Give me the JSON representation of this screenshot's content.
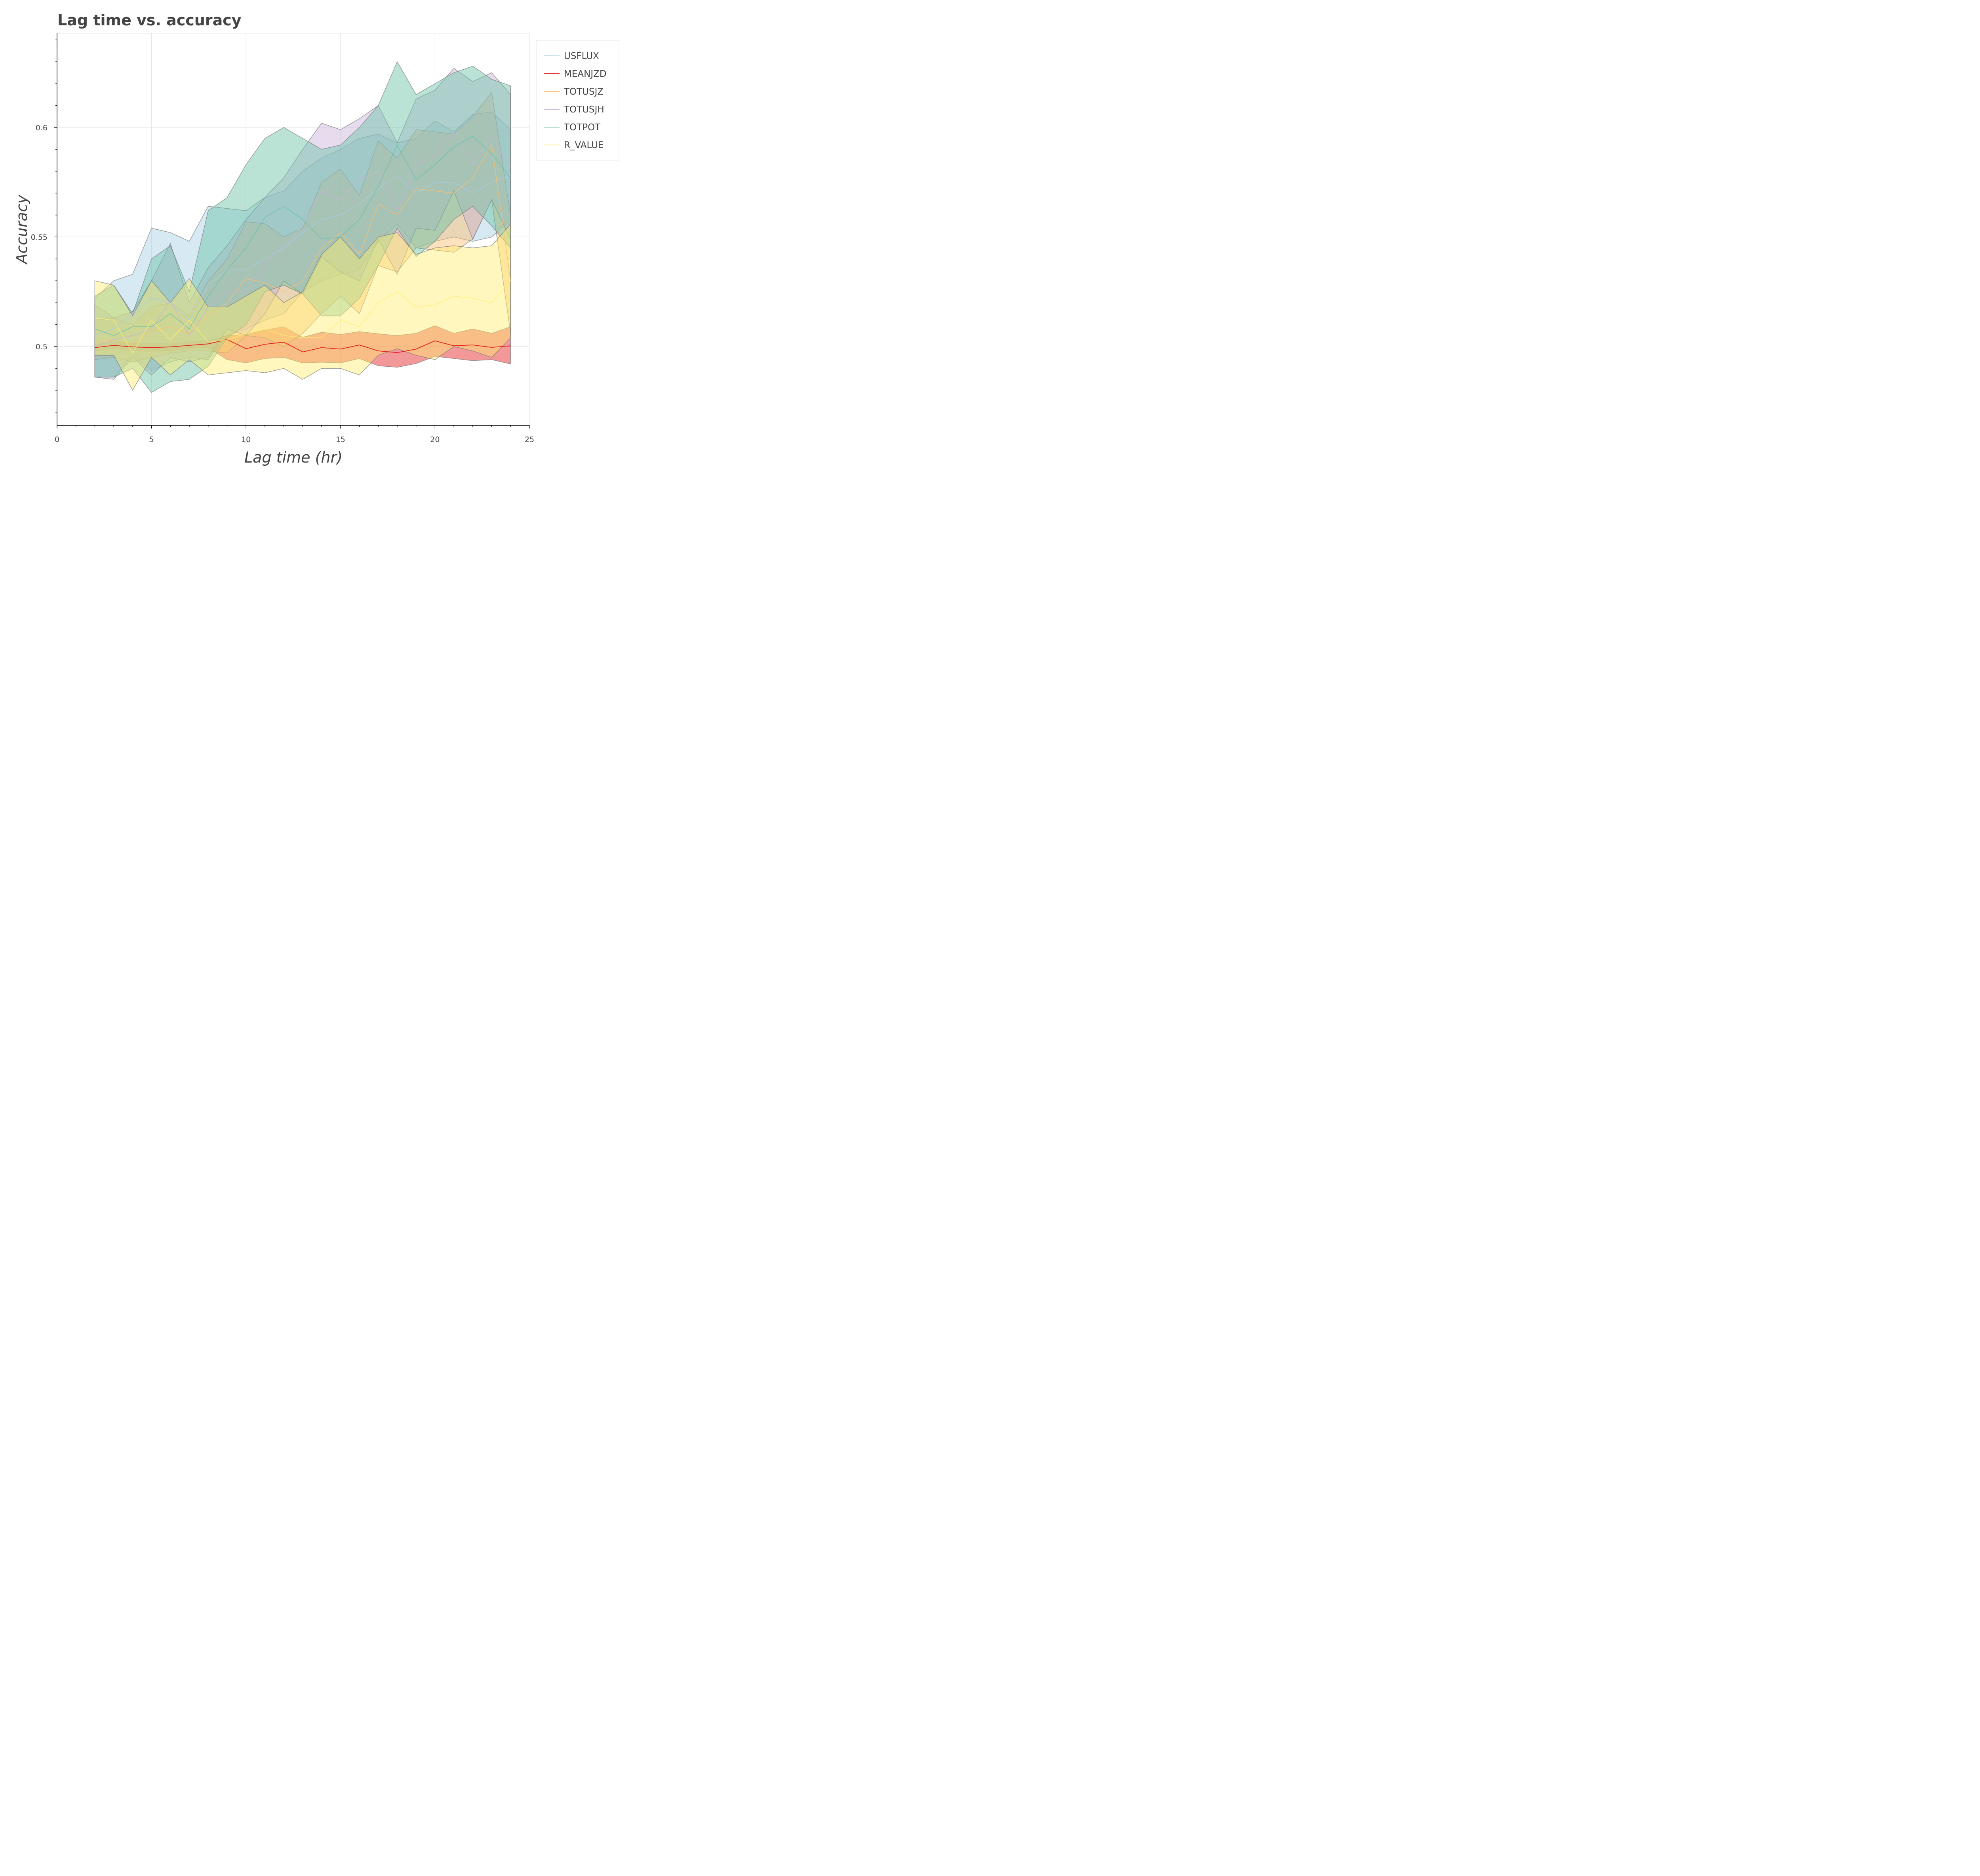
{
  "chart_data": {
    "type": "area",
    "title": "Lag time vs. accuracy",
    "xlabel": "Lag time (hr)",
    "ylabel": "Accuracy",
    "xlim": [
      0,
      25
    ],
    "ylim": [
      0.464,
      0.643
    ],
    "xticks": [
      0,
      5,
      10,
      15,
      20,
      25
    ],
    "xtick_labels": [
      "0",
      "5",
      "10",
      "15",
      "20",
      "25"
    ],
    "yticks": [
      0.5,
      0.55,
      0.6
    ],
    "ytick_labels": [
      "0.5",
      "0.55",
      "0.6"
    ],
    "grid": true,
    "legend_position": "top-right outside",
    "x": [
      2,
      3,
      4,
      5,
      6,
      7,
      8,
      9,
      10,
      11,
      12,
      13,
      14,
      15,
      16,
      17,
      18,
      19,
      20,
      21,
      22,
      23,
      24
    ],
    "series": [
      {
        "name": "USFLUX",
        "color": "#a6cee3",
        "mean": [
          0.505,
          0.508,
          0.515,
          0.522,
          0.52,
          0.512,
          0.528,
          0.535,
          0.535,
          0.54,
          0.545,
          0.552,
          0.558,
          0.56,
          0.565,
          0.572,
          0.578,
          0.57,
          0.575,
          0.575,
          0.57,
          0.575,
          0.578
        ],
        "upper": [
          0.522,
          0.53,
          0.533,
          0.554,
          0.552,
          0.548,
          0.564,
          0.563,
          0.562,
          0.568,
          0.571,
          0.58,
          0.586,
          0.59,
          0.595,
          0.597,
          0.593,
          0.595,
          0.603,
          0.598,
          0.606,
          0.607,
          0.599
        ],
        "lower": [
          0.486,
          0.486,
          0.496,
          0.489,
          0.493,
          0.495,
          0.494,
          0.505,
          0.508,
          0.512,
          0.515,
          0.525,
          0.53,
          0.533,
          0.535,
          0.548,
          0.556,
          0.545,
          0.548,
          0.55,
          0.548,
          0.55,
          0.558
        ]
      },
      {
        "name": "MEANJZD",
        "color": "#e31a1c",
        "mean": [
          0.4995,
          0.5005,
          0.4998,
          0.4995,
          0.4998,
          0.5005,
          0.5012,
          0.5032,
          0.499,
          0.501,
          0.502,
          0.4975,
          0.4995,
          0.4988,
          0.5007,
          0.498,
          0.4972,
          0.4988,
          0.5026,
          0.5003,
          0.5007,
          0.4996,
          0.5003
        ],
        "upper": [
          0.501,
          0.502,
          0.5015,
          0.5012,
          0.5015,
          0.502,
          0.5028,
          0.505,
          0.5055,
          0.5075,
          0.509,
          0.5042,
          0.5065,
          0.5055,
          0.5068,
          0.5058,
          0.505,
          0.506,
          0.5095,
          0.506,
          0.508,
          0.506,
          0.509
        ],
        "lower": [
          0.498,
          0.499,
          0.4981,
          0.4978,
          0.4981,
          0.499,
          0.4996,
          0.494,
          0.4925,
          0.4945,
          0.495,
          0.4925,
          0.4928,
          0.4925,
          0.4945,
          0.4912,
          0.4905,
          0.4922,
          0.4955,
          0.4945,
          0.4935,
          0.494,
          0.492
        ]
      },
      {
        "name": "TOTUSJZ",
        "color": "#fdbf6f",
        "mean": [
          0.502,
          0.503,
          0.501,
          0.507,
          0.509,
          0.506,
          0.514,
          0.52,
          0.531,
          0.529,
          0.525,
          0.53,
          0.545,
          0.552,
          0.542,
          0.565,
          0.56,
          0.572,
          0.571,
          0.57,
          0.577,
          0.592,
          0.53
        ],
        "upper": [
          0.512,
          0.513,
          0.51,
          0.518,
          0.52,
          0.514,
          0.53,
          0.54,
          0.557,
          0.556,
          0.55,
          0.554,
          0.575,
          0.581,
          0.569,
          0.594,
          0.586,
          0.599,
          0.598,
          0.597,
          0.605,
          0.616,
          0.56
        ],
        "lower": [
          0.494,
          0.495,
          0.493,
          0.495,
          0.497,
          0.498,
          0.498,
          0.497,
          0.505,
          0.504,
          0.5,
          0.506,
          0.515,
          0.523,
          0.515,
          0.537,
          0.534,
          0.545,
          0.544,
          0.543,
          0.549,
          0.567,
          0.506
        ]
      },
      {
        "name": "TOTUSJH",
        "color": "#cab2d6",
        "mean": [
          0.5,
          0.503,
          0.505,
          0.508,
          0.521,
          0.505,
          0.518,
          0.525,
          0.525,
          0.538,
          0.545,
          0.555,
          0.571,
          0.567,
          0.576,
          0.58,
          0.562,
          0.583,
          0.587,
          0.598,
          0.583,
          0.596,
          0.582
        ],
        "upper": [
          0.519,
          0.513,
          0.516,
          0.53,
          0.547,
          0.52,
          0.536,
          0.546,
          0.558,
          0.568,
          0.577,
          0.59,
          0.602,
          0.599,
          0.604,
          0.61,
          0.593,
          0.613,
          0.617,
          0.627,
          0.621,
          0.625,
          0.615
        ],
        "lower": [
          0.486,
          0.485,
          0.495,
          0.487,
          0.495,
          0.493,
          0.495,
          0.508,
          0.505,
          0.515,
          0.53,
          0.524,
          0.541,
          0.534,
          0.53,
          0.549,
          0.533,
          0.554,
          0.553,
          0.571,
          0.549,
          0.567,
          0.549
        ]
      },
      {
        "name": "TOTPOT",
        "color": "#66c2a5",
        "mean": [
          0.508,
          0.505,
          0.509,
          0.509,
          0.515,
          0.508,
          0.523,
          0.535,
          0.545,
          0.559,
          0.564,
          0.558,
          0.549,
          0.55,
          0.558,
          0.573,
          0.592,
          0.576,
          0.583,
          0.591,
          0.596,
          0.588,
          0.577
        ],
        "upper": [
          0.523,
          0.528,
          0.515,
          0.54,
          0.546,
          0.525,
          0.562,
          0.568,
          0.583,
          0.595,
          0.6,
          0.595,
          0.59,
          0.592,
          0.6,
          0.61,
          0.63,
          0.615,
          0.62,
          0.625,
          0.628,
          0.622,
          0.619
        ],
        "lower": [
          0.486,
          0.486,
          0.49,
          0.479,
          0.484,
          0.485,
          0.491,
          0.504,
          0.51,
          0.525,
          0.528,
          0.524,
          0.514,
          0.514,
          0.522,
          0.537,
          0.554,
          0.541,
          0.548,
          0.558,
          0.564,
          0.555,
          0.545
        ]
      },
      {
        "name": "R_VALUE",
        "color": "#ffed6f",
        "mean": [
          0.513,
          0.512,
          0.497,
          0.512,
          0.503,
          0.512,
          0.502,
          0.503,
          0.506,
          0.508,
          0.505,
          0.504,
          0.504,
          0.512,
          0.509,
          0.52,
          0.525,
          0.518,
          0.519,
          0.523,
          0.522,
          0.52,
          0.53
        ],
        "upper": [
          0.53,
          0.528,
          0.514,
          0.53,
          0.52,
          0.531,
          0.518,
          0.518,
          0.523,
          0.528,
          0.52,
          0.525,
          0.542,
          0.55,
          0.54,
          0.55,
          0.552,
          0.542,
          0.545,
          0.546,
          0.545,
          0.546,
          0.556
        ],
        "lower": [
          0.496,
          0.496,
          0.48,
          0.495,
          0.487,
          0.494,
          0.487,
          0.488,
          0.489,
          0.488,
          0.49,
          0.485,
          0.49,
          0.49,
          0.487,
          0.496,
          0.499,
          0.496,
          0.494,
          0.5,
          0.498,
          0.495,
          0.504
        ]
      }
    ]
  }
}
